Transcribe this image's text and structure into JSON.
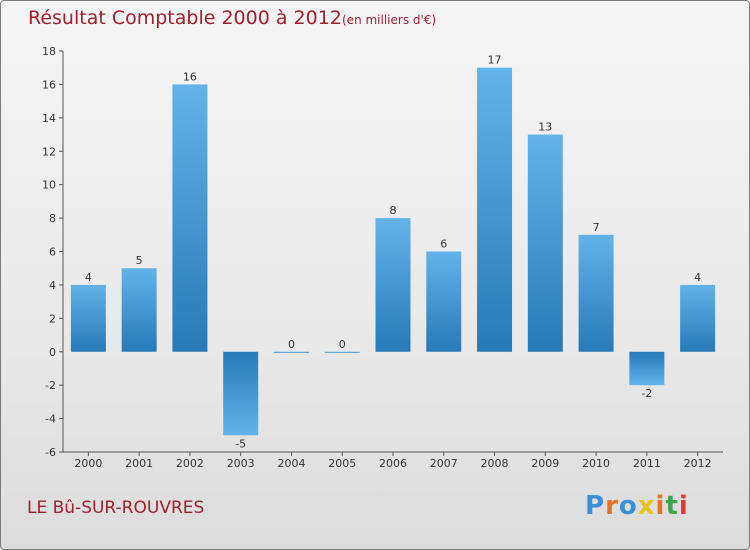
{
  "title": "Résultat Comptable 2000 à 2012",
  "subtitle": "(en milliers d'€)",
  "commune": "LE Bû-SUR-ROUVRES",
  "brand": {
    "letters": [
      "P",
      "r",
      "o",
      "x",
      "i",
      "t",
      "i"
    ],
    "colors": [
      "#3a8fd9",
      "#e8712a",
      "#3a8fd9",
      "#e8c21a",
      "#e8712a",
      "#3aa84a",
      "#d93a3a"
    ]
  },
  "colors": {
    "title": "#a0202c",
    "bar_top": "#63b3ea",
    "bar_bottom": "#2779b8",
    "axis": "#555555"
  },
  "chart_data": {
    "type": "bar",
    "title": "Résultat Comptable 2000 à 2012",
    "xlabel": "",
    "ylabel": "",
    "categories": [
      "2000",
      "2001",
      "2002",
      "2003",
      "2004",
      "2005",
      "2006",
      "2007",
      "2008",
      "2009",
      "2010",
      "2011",
      "2012"
    ],
    "values": [
      4,
      5,
      16,
      -5,
      0,
      0,
      8,
      6,
      17,
      13,
      7,
      -2,
      4
    ],
    "ylim": [
      -6,
      18
    ],
    "yticks": [
      18,
      16,
      14,
      12,
      10,
      8,
      6,
      4,
      2,
      0,
      -2,
      -4,
      -6
    ],
    "grid": false
  }
}
